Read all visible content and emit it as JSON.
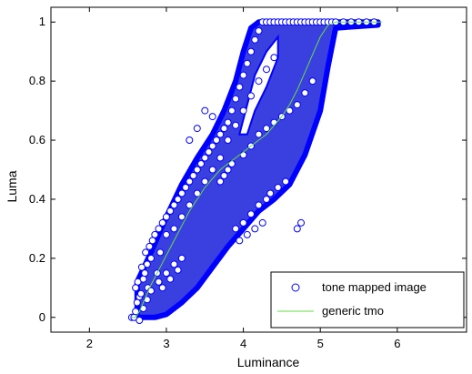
{
  "chart_data": {
    "type": "scatter",
    "title": "",
    "xlabel": "Luminance",
    "ylabel": "Luma",
    "xlim": [
      1.5,
      6.9
    ],
    "ylim": [
      -0.05,
      1.05
    ],
    "xticks": [
      2,
      3,
      4,
      5,
      6
    ],
    "yticks": [
      0,
      0.2,
      0.4,
      0.6,
      0.8,
      1
    ],
    "ytick_labels": [
      "0",
      "0.2",
      "0.4",
      "0.6",
      "0.8",
      "1"
    ],
    "grid": false,
    "legend_position": "bottom-right",
    "series": [
      {
        "name": "tone mapped image",
        "kind": "scatter",
        "marker": "open-circle",
        "color": "#0000ff",
        "x": [
          2.55,
          2.58,
          2.6,
          2.62,
          2.65,
          2.6,
          2.63,
          2.67,
          2.7,
          2.72,
          2.75,
          2.8,
          2.68,
          2.73,
          2.78,
          2.82,
          2.85,
          2.9,
          2.76,
          2.88,
          2.95,
          3.0,
          2.92,
          3.05,
          3.1,
          3.0,
          3.15,
          3.2,
          3.1,
          3.25,
          3.3,
          3.35,
          3.2,
          3.4,
          3.45,
          3.3,
          3.5,
          3.55,
          3.4,
          3.6,
          3.65,
          3.5,
          3.7,
          3.75,
          3.6,
          3.8,
          3.85,
          3.7,
          3.9,
          3.95,
          3.8,
          4.0,
          4.05,
          3.9,
          4.1,
          4.15,
          4.0,
          4.2,
          4.25,
          4.1,
          4.3,
          4.35,
          4.2,
          4.4,
          4.45,
          4.3,
          4.5,
          4.55,
          4.6,
          4.4,
          4.65,
          4.7,
          4.75,
          4.8,
          4.85,
          4.9,
          4.95,
          5.0,
          5.05,
          5.1,
          5.15,
          5.2,
          5.3,
          5.4,
          5.5,
          5.6,
          5.7,
          3.9,
          4.0,
          4.1,
          4.2,
          4.3,
          3.95,
          4.05,
          4.15,
          4.25,
          3.85,
          3.75,
          3.7,
          3.8,
          4.35,
          4.45,
          4.55,
          2.65,
          2.7,
          2.75,
          2.8,
          2.9,
          3.0,
          3.1,
          3.2,
          4.0,
          4.1,
          4.2,
          4.3,
          4.4,
          4.5,
          4.6,
          4.7,
          4.8,
          4.9,
          3.3,
          3.4,
          3.6,
          3.5,
          4.7,
          4.75,
          2.95,
          3.05,
          3.15
        ],
        "y": [
          0.0,
          0.0,
          0.02,
          0.05,
          0.07,
          0.1,
          0.12,
          0.08,
          0.13,
          0.15,
          0.18,
          0.2,
          0.17,
          0.22,
          0.24,
          0.26,
          0.28,
          0.3,
          0.1,
          0.15,
          0.32,
          0.34,
          0.22,
          0.36,
          0.38,
          0.28,
          0.4,
          0.42,
          0.3,
          0.44,
          0.46,
          0.48,
          0.34,
          0.5,
          0.52,
          0.38,
          0.54,
          0.56,
          0.42,
          0.58,
          0.6,
          0.46,
          0.62,
          0.64,
          0.5,
          0.66,
          0.7,
          0.54,
          0.74,
          0.78,
          0.6,
          0.82,
          0.86,
          0.65,
          0.9,
          0.94,
          0.7,
          0.97,
          1.0,
          0.75,
          1.0,
          1.0,
          0.8,
          1.0,
          1.0,
          0.84,
          1.0,
          1.0,
          1.0,
          0.88,
          1.0,
          1.0,
          1.0,
          1.0,
          1.0,
          1.0,
          1.0,
          1.0,
          1.0,
          1.0,
          1.0,
          1.0,
          1.0,
          1.0,
          1.0,
          1.0,
          1.0,
          0.3,
          0.32,
          0.35,
          0.38,
          0.4,
          0.26,
          0.28,
          0.3,
          0.32,
          0.52,
          0.48,
          0.46,
          0.5,
          0.42,
          0.44,
          0.46,
          -0.01,
          0.03,
          0.06,
          0.09,
          0.12,
          0.15,
          0.18,
          0.2,
          0.55,
          0.58,
          0.62,
          0.64,
          0.66,
          0.68,
          0.7,
          0.72,
          0.76,
          0.8,
          0.6,
          0.64,
          0.68,
          0.7,
          0.3,
          0.32,
          0.1,
          0.13,
          0.16
        ]
      },
      {
        "name": "generic tmo",
        "kind": "line",
        "color": "#66dd44",
        "x": [
          2.55,
          2.6,
          2.65,
          2.7,
          2.75,
          2.8,
          2.9,
          3.0,
          3.1,
          3.2,
          3.3,
          3.4,
          3.5,
          3.6,
          3.7,
          3.8,
          3.9,
          4.0,
          4.1,
          4.2,
          4.3,
          4.4,
          4.5,
          4.6,
          4.7,
          4.8,
          4.9,
          5.0,
          5.1,
          5.2,
          5.4,
          5.6,
          5.8
        ],
        "y": [
          0.0,
          0.0,
          0.02,
          0.05,
          0.08,
          0.11,
          0.16,
          0.21,
          0.26,
          0.31,
          0.36,
          0.4,
          0.44,
          0.47,
          0.5,
          0.52,
          0.54,
          0.56,
          0.58,
          0.6,
          0.62,
          0.65,
          0.68,
          0.72,
          0.77,
          0.83,
          0.89,
          0.95,
          0.99,
          1.0,
          1.0,
          1.0,
          1.0
        ]
      }
    ]
  }
}
